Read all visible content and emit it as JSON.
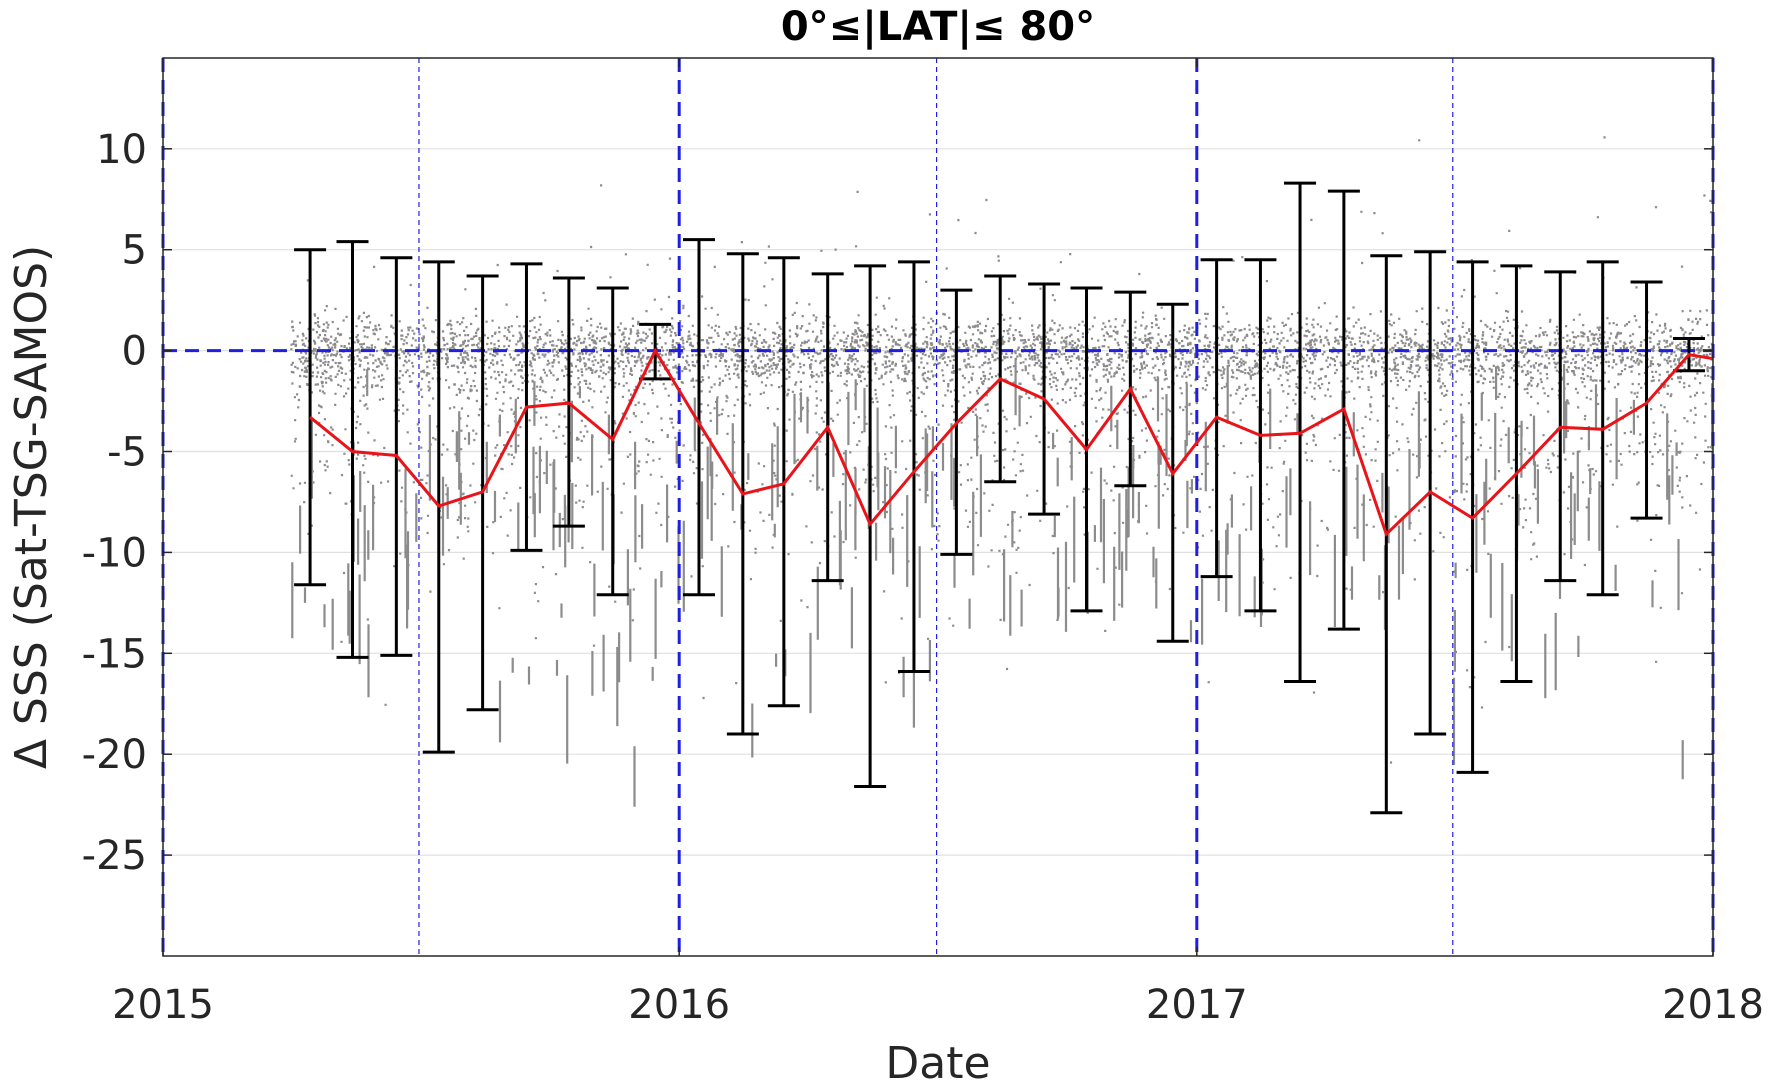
{
  "chart_data": {
    "type": "scatter",
    "title": "0°≤|LAT|≤ 80°",
    "xlabel": "Date",
    "ylabel": "Δ SSS (Sat-TSG-SAMOS)",
    "xlim": [
      "2015-01-01",
      "2018-01-01"
    ],
    "ylim": [
      -30,
      14.5
    ],
    "x_ticks": [
      "2015",
      "2016",
      "2017",
      "2018"
    ],
    "y_ticks": [
      10,
      5,
      0,
      -5,
      -10,
      -15,
      -20,
      -25
    ],
    "y_tick_labels": [
      "10",
      "5",
      "0",
      "-5",
      "-10",
      "-15",
      "-20",
      "-25"
    ],
    "grid": true,
    "colors": {
      "scatter": "#808080",
      "mean_line": "#e8141a",
      "error_bar": "#000000",
      "reference_lines": "#1f1fe0"
    },
    "reference_lines": {
      "zero_line": 0,
      "year_boundaries": [
        "2015-01-01",
        "2016-01-01",
        "2017-01-01",
        "2018-01-01"
      ],
      "mid_year": [
        "2015-07-01",
        "2016-07-01",
        "2017-07-01"
      ]
    },
    "series": [
      {
        "kind": "mean_with_error_bars",
        "x": [
          "2015-04-15",
          "2015-05-15",
          "2015-06-15",
          "2015-07-15",
          "2015-08-15",
          "2015-09-15",
          "2015-10-15",
          "2015-11-15",
          "2015-12-15",
          "2016-01-15",
          "2016-02-15",
          "2016-03-15",
          "2016-04-15",
          "2016-05-15",
          "2016-06-15",
          "2016-07-15",
          "2016-08-15",
          "2016-09-15",
          "2016-10-15",
          "2016-11-15",
          "2016-12-15",
          "2017-01-15",
          "2017-02-15",
          "2017-03-15",
          "2017-04-15",
          "2017-05-15",
          "2017-06-15",
          "2017-07-15",
          "2017-08-15",
          "2017-09-15",
          "2017-10-15",
          "2017-11-15",
          "2017-12-15",
          "2018-01-01"
        ],
        "mean": [
          -3.3,
          -5.0,
          -5.2,
          -7.7,
          -7.0,
          -2.8,
          -2.6,
          -4.4,
          0.0,
          -3.6,
          -7.1,
          -6.6,
          -3.8,
          -8.6,
          -6.0,
          -3.6,
          -1.4,
          -2.4,
          -4.9,
          -1.9,
          -6.1,
          -3.3,
          -4.2,
          -4.1,
          -2.9,
          -9.1,
          -7.0,
          -8.3,
          -6.1,
          -3.8,
          -3.9,
          -2.6,
          -0.2,
          -0.4
        ],
        "upper": [
          5.0,
          5.4,
          4.6,
          4.4,
          3.7,
          4.3,
          3.6,
          3.1,
          1.3,
          5.5,
          4.8,
          4.6,
          3.8,
          4.2,
          4.4,
          3.0,
          3.7,
          3.3,
          3.1,
          2.9,
          2.3,
          4.5,
          4.5,
          8.3,
          7.9,
          4.7,
          4.9,
          4.4,
          4.2,
          3.9,
          4.4,
          3.4,
          0.6,
          null
        ],
        "lower": [
          -11.6,
          -15.2,
          -15.1,
          -19.9,
          -17.8,
          -9.9,
          -8.7,
          -12.1,
          -1.4,
          -12.1,
          -19.0,
          -17.6,
          -11.4,
          -21.6,
          -15.9,
          -10.1,
          -6.5,
          -8.1,
          -12.9,
          -6.7,
          -14.4,
          -11.2,
          -12.9,
          -16.4,
          -13.8,
          -22.9,
          -19.0,
          -20.9,
          -16.4,
          -11.4,
          -12.1,
          -8.3,
          -1.0,
          null
        ]
      },
      {
        "kind": "raw_scatter",
        "note_points": "dense gray point cloud of individual match-ups, mostly within ±3 of 0 with sparse outliers down to -30 and up to 14"
      }
    ]
  }
}
